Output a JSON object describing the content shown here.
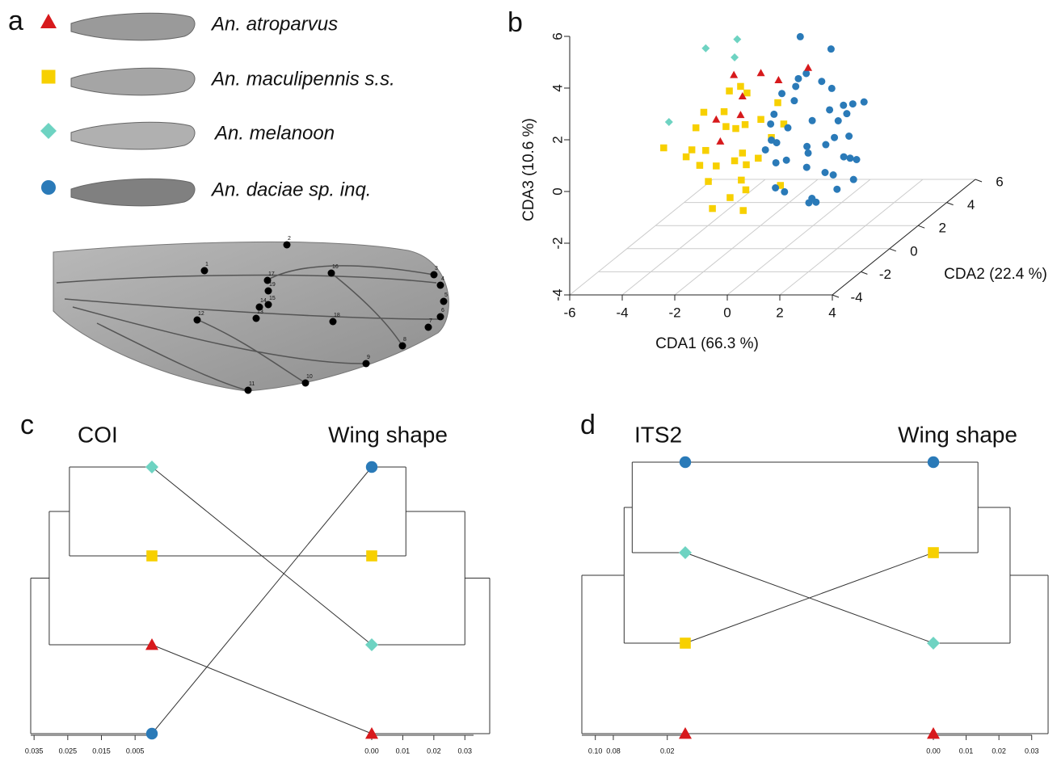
{
  "panel_a": {
    "label": "a",
    "landmarks": [
      1,
      2,
      3,
      4,
      5,
      6,
      7,
      8,
      9,
      10,
      11,
      12,
      13,
      14,
      15,
      16,
      17,
      18,
      19
    ]
  },
  "chart_data": [
    {
      "type": "scatter3d",
      "label": "b",
      "xlabel": "CDA1 (66.3 %)",
      "ylabel": "CDA2 (22.4 %)",
      "zlabel": "CDA3 (10.6 %)",
      "xlim": [
        -6,
        4
      ],
      "ylim": [
        -4,
        6
      ],
      "zlim": [
        -4,
        6
      ],
      "xticks": [
        -6,
        -4,
        -2,
        0,
        2,
        4
      ],
      "yticks": [
        -4,
        -2,
        0,
        2,
        4,
        6
      ],
      "zticks": [
        -4,
        -2,
        0,
        2,
        4,
        6
      ],
      "grid": true,
      "series": [
        {
          "name": "An. atroparvus",
          "color": "#d7191c",
          "marker": "triangle",
          "x": [
            -1.6,
            -2.2,
            -0.9,
            -1.4,
            0.9,
            -2.6,
            -0.5,
            -1.9
          ],
          "y": [
            0,
            0.5,
            0,
            -0.5,
            0,
            0,
            0.5,
            -1
          ],
          "z": [
            1.9,
            2.5,
            2.8,
            1.4,
            3.0,
            1.0,
            2.3,
            0.6
          ]
        },
        {
          "name": "An. maculipennis s.s.",
          "color": "#f7d000",
          "marker": "square",
          "x": [
            -1.9,
            -2.5,
            -1.2,
            -3.0,
            -0.8,
            -2.2,
            -1.5,
            -3.5,
            -2.8,
            -1.0,
            -2.0,
            -0.5,
            -3.2,
            -1.7,
            -2.6,
            -1.3,
            -4.6,
            -2.4,
            -0.9,
            -1.8,
            -3.8,
            -2.1,
            -1.1,
            -2.9,
            -0.3,
            -1.6,
            -3.1,
            -0.7,
            -2.3,
            -1.4
          ],
          "y": [
            0,
            0.5,
            -0.5,
            0,
            1,
            -1,
            0,
            0.5,
            -0.5,
            0,
            1,
            0,
            -1,
            0.5,
            0,
            -0.5,
            0,
            1,
            0,
            -0.5,
            0.5,
            0,
            -1,
            0,
            0.5,
            0,
            -0.5,
            1,
            0,
            -0.5
          ],
          "z": [
            -0.6,
            0.5,
            -1.5,
            -0.2,
            1.2,
            -2.0,
            0.8,
            -1.0,
            1.5,
            -0.5,
            -1.2,
            0.3,
            0,
            1.8,
            -0.8,
            -2.3,
            -0.1,
            0.2,
            1.0,
            -1.8,
            -0.4,
            2.1,
            -0.9,
            -1.4,
            0.6,
            -0.3,
            0.9,
            -2.0,
            1.3,
            2.5
          ]
        },
        {
          "name": "An. melanoon",
          "color": "#6ed3c2",
          "marker": "diamond",
          "x": [
            -3,
            -1.9,
            -4.4,
            -1.8
          ],
          "y": [
            0,
            0,
            0,
            0
          ],
          "z": [
            3.75,
            3.4,
            0.9,
            4.1
          ]
        },
        {
          "name": "An. daciae sp. inq.",
          "color": "#2a7ab8",
          "marker": "circle",
          "x": [
            0.9,
            1.5,
            0.2,
            2.1,
            -0.5,
            1.2,
            0.6,
            2.8,
            -0.2,
            1.8,
            0.4,
            1.0,
            2.5,
            -0.8,
            1.6,
            0,
            2.2,
            0.8,
            -0.4,
            1.3,
            3.0,
            0.5,
            1.9,
            -1.0,
            1.1,
            2.6,
            0.3,
            1.4,
            -0.6,
            2.0,
            0.7,
            1.7,
            -0.3,
            2.4,
            0.1,
            1.2,
            0.9,
            2.9,
            -0.1,
            1.5,
            0.6,
            3.3
          ],
          "y": [
            0,
            1,
            -1,
            0.5,
            0,
            -0.5,
            1.5,
            -1,
            0.5,
            0,
            -0.5,
            1,
            0,
            0.5,
            -1,
            0,
            1,
            -0.5,
            0,
            0.5,
            -1,
            1,
            0,
            0.5,
            -0.5,
            0,
            1,
            -1,
            0.5,
            0,
            -0.5,
            1,
            0,
            -1,
            0.5,
            0,
            1.5,
            -0.5,
            0,
            0.5,
            0,
            -0.5
          ],
          "z": [
            -0.3,
            0.5,
            -1.2,
            1.0,
            0.2,
            -2.0,
            1.8,
            0,
            -0.8,
            2.2,
            0.9,
            -1.5,
            -0.5,
            0.6,
            1.4,
            -1.8,
            -1.0,
            2.8,
            1.2,
            -0.2,
            0.8,
            -2.5,
            0.3,
            -0.4,
            3.0,
            1.6,
            -1.3,
            0.4,
            -0.9,
            -1.7,
            2.5,
            1.1,
            0.1,
            -0.7,
            1.5,
            -2.2,
            0.7,
            -1.1,
            2.0,
            3.5,
            4.2,
            1.9
          ]
        }
      ]
    },
    {
      "type": "tanglegram",
      "label": "c",
      "left": {
        "title": "COI",
        "tips": [
          2,
          1,
          0,
          3
        ],
        "merge_heights": [
          0.0245,
          0.0305,
          0.036
        ],
        "xlim": [
          0.036,
          0
        ],
        "xticks": [
          0.035,
          0.025,
          0.015,
          0.005
        ]
      },
      "right": {
        "title": "Wing shape",
        "tips": [
          3,
          1,
          2,
          0
        ],
        "merge_heights": [
          0.011,
          0.03,
          0.038
        ],
        "xlim": [
          0,
          0.038
        ],
        "xticks": [
          {
            "value": 0,
            "label": "0.00"
          },
          0.01,
          0.02,
          0.03
        ]
      }
    },
    {
      "type": "tanglegram",
      "label": "d",
      "left": {
        "title": "ITS2",
        "tips": [
          3,
          2,
          1,
          0
        ],
        "merge_heights": [
          0.059,
          0.068,
          0.115
        ],
        "xlim": [
          0.115,
          0
        ],
        "xticks": [
          {
            "value": 0.1,
            "label": "0.10"
          },
          0.08,
          0.02
        ]
      },
      "right": {
        "title": "Wing shape",
        "tips": [
          3,
          1,
          2,
          0
        ],
        "merge_heights": [
          0.0136,
          0.0234,
          0.035
        ],
        "xlim": [
          0,
          0.035
        ],
        "xticks": [
          {
            "value": 0,
            "label": "0.00"
          },
          0.01,
          0.02,
          0.03
        ]
      }
    }
  ]
}
